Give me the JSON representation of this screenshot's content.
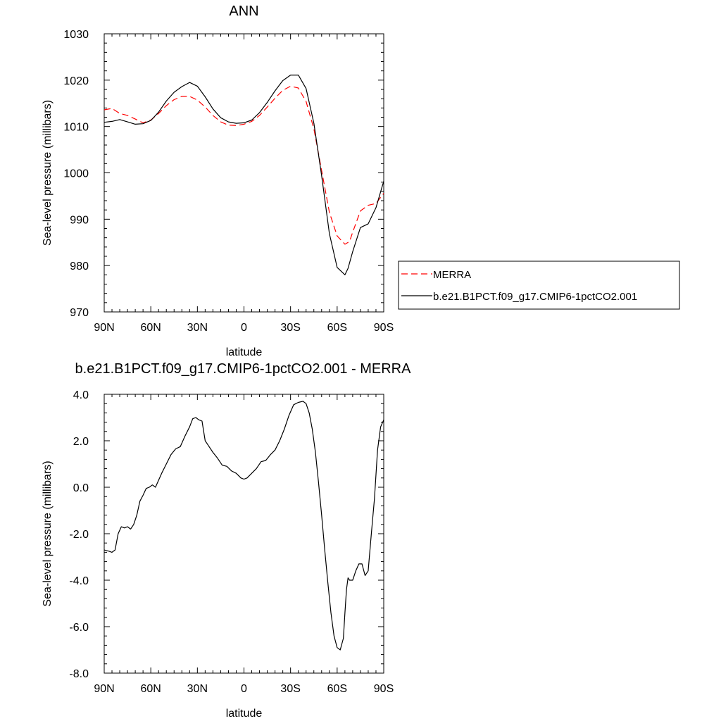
{
  "chart_data": [
    {
      "type": "line",
      "title": "ANN",
      "xlabel": "latitude",
      "ylabel": "Sea-level pressure (millibars)",
      "xlim": [
        90,
        -90
      ],
      "ylim": [
        970,
        1030
      ],
      "x_ticks": [
        90,
        60,
        30,
        0,
        -30,
        -60,
        -90
      ],
      "x_tick_labels": [
        "90N",
        "60N",
        "30N",
        "0",
        "30S",
        "60S",
        "90S"
      ],
      "y_ticks": [
        970,
        980,
        990,
        1000,
        1010,
        1020,
        1030
      ],
      "y_tick_labels": [
        "970",
        "980",
        "990",
        "1000",
        "1010",
        "1020",
        "1030"
      ],
      "legend": "outside-right",
      "series": [
        {
          "name": "MERRA",
          "color": "#ff0000",
          "dash": "dashed",
          "x": [
            90,
            85,
            80,
            75,
            70,
            65,
            60,
            55,
            50,
            45,
            40,
            35,
            30,
            25,
            20,
            15,
            10,
            5,
            0,
            -5,
            -10,
            -15,
            -20,
            -25,
            -30,
            -35,
            -40,
            -45,
            -50,
            -55,
            -60,
            -65,
            -68,
            -70,
            -75,
            -80,
            -85,
            -90
          ],
          "y": [
            1013.6,
            1013.9,
            1012.8,
            1012.4,
            1011.6,
            1010.8,
            1011.4,
            1012.8,
            1014.5,
            1015.8,
            1016.5,
            1016.5,
            1015.7,
            1014.2,
            1012.4,
            1011.0,
            1010.3,
            1010.2,
            1010.5,
            1011.1,
            1012.4,
            1014.2,
            1016.1,
            1017.8,
            1018.7,
            1018.3,
            1015.4,
            1009.5,
            1000.5,
            991.5,
            986.4,
            984.6,
            985.2,
            987.2,
            991.8,
            993.0,
            993.4,
            995.6
          ]
        },
        {
          "name": "b.e21.B1PCT.f09_g17.CMIP6-1pctCO2.001",
          "color": "#000000",
          "dash": "solid",
          "x": [
            90,
            85,
            80,
            75,
            70,
            65,
            60,
            55,
            50,
            45,
            40,
            35,
            30,
            25,
            20,
            15,
            10,
            5,
            0,
            -5,
            -10,
            -15,
            -20,
            -25,
            -30,
            -35,
            -40,
            -45,
            -50,
            -55,
            -60,
            -65,
            -67,
            -70,
            -75,
            -80,
            -85,
            -90
          ],
          "y": [
            1010.9,
            1011.1,
            1011.5,
            1011.0,
            1010.5,
            1010.6,
            1011.3,
            1013.1,
            1015.5,
            1017.4,
            1018.6,
            1019.5,
            1018.7,
            1016.4,
            1013.8,
            1011.9,
            1011.0,
            1010.7,
            1010.8,
            1011.4,
            1013.0,
            1015.2,
            1017.7,
            1019.9,
            1021.1,
            1021.1,
            1018.2,
            1010.7,
            999.4,
            986.9,
            979.6,
            978.0,
            979.4,
            983.0,
            988.2,
            989.0,
            992.5,
            998.2
          ]
        }
      ]
    },
    {
      "type": "line",
      "title": "b.e21.B1PCT.f09_g17.CMIP6-1pctCO2.001 - MERRA",
      "xlabel": "latitude",
      "ylabel": "Sea-level pressure (millibars)",
      "xlim": [
        90,
        -90
      ],
      "ylim": [
        -8,
        4
      ],
      "x_ticks": [
        90,
        60,
        30,
        0,
        -30,
        -60,
        -90
      ],
      "x_tick_labels": [
        "90N",
        "60N",
        "30N",
        "0",
        "30S",
        "60S",
        "90S"
      ],
      "y_ticks": [
        -8,
        -6,
        -4,
        -2,
        0,
        2,
        4
      ],
      "y_tick_labels": [
        "-8.0",
        "-6.0",
        "-4.0",
        "-2.0",
        "0.0",
        "2.0",
        "4.0"
      ],
      "series": [
        {
          "color": "#000000",
          "x": [
            90,
            87,
            85,
            83,
            81,
            79,
            77,
            75,
            73,
            71,
            69,
            67,
            65,
            63,
            61,
            59,
            57,
            55,
            53,
            50,
            47,
            44,
            41,
            38,
            35,
            33,
            31,
            29,
            27,
            25,
            23,
            20,
            17,
            14,
            11,
            8,
            5,
            2,
            0,
            -2,
            -5,
            -8,
            -11,
            -14,
            -17,
            -20,
            -23,
            -26,
            -29,
            -32,
            -35,
            -38,
            -40,
            -42,
            -44,
            -46,
            -48,
            -50,
            -52,
            -54,
            -56,
            -58,
            -60,
            -62,
            -64,
            -65,
            -66,
            -67,
            -68,
            -70,
            -72,
            -74,
            -76,
            -78,
            -80,
            -82,
            -84,
            -86,
            -88,
            -90
          ],
          "y": [
            -2.7,
            -2.75,
            -2.8,
            -2.7,
            -2.0,
            -1.7,
            -1.75,
            -1.7,
            -1.8,
            -1.6,
            -1.2,
            -0.6,
            -0.35,
            -0.05,
            0.0,
            0.1,
            0.0,
            0.3,
            0.6,
            1.0,
            1.4,
            1.65,
            1.75,
            2.2,
            2.6,
            2.95,
            3.0,
            2.9,
            2.85,
            2.0,
            1.8,
            1.5,
            1.25,
            0.95,
            0.9,
            0.7,
            0.6,
            0.4,
            0.35,
            0.4,
            0.6,
            0.8,
            1.1,
            1.15,
            1.4,
            1.6,
            2.0,
            2.5,
            3.1,
            3.55,
            3.65,
            3.7,
            3.6,
            3.2,
            2.5,
            1.5,
            0.2,
            -1.2,
            -2.7,
            -4.1,
            -5.4,
            -6.4,
            -6.9,
            -7.0,
            -6.5,
            -5.4,
            -4.4,
            -3.9,
            -4.0,
            -4.0,
            -3.6,
            -3.3,
            -3.3,
            -3.8,
            -3.6,
            -2.0,
            -0.5,
            1.6,
            2.6,
            2.9
          ]
        }
      ]
    }
  ]
}
